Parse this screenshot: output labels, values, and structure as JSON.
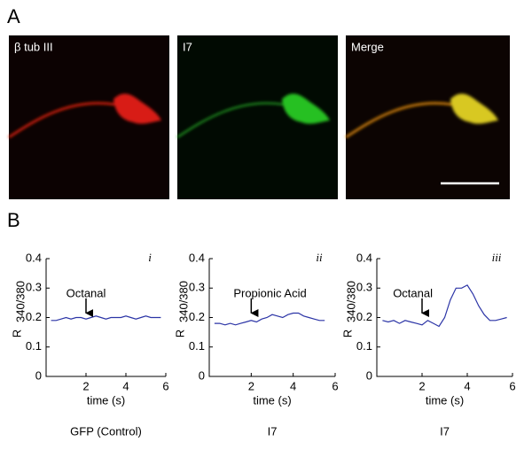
{
  "panel_a": {
    "label": "A",
    "images": [
      {
        "label": "β tub III"
      },
      {
        "label": "I7"
      },
      {
        "label": "Merge"
      }
    ]
  },
  "panel_b": {
    "label": "B"
  },
  "chart_data": [
    {
      "type": "line",
      "numeral": "i",
      "ylabel": "R",
      "ylabel_subscript": "340/380",
      "xlabel": "time (s)",
      "caption": "GFP (Control)",
      "annotation": {
        "text": "Octanal",
        "x": 2
      },
      "xlim": [
        0,
        6
      ],
      "xticks": [
        2,
        4,
        6
      ],
      "ylim": [
        0,
        0.4
      ],
      "yticks": [
        0,
        0.1,
        0.2,
        0.3,
        0.4
      ],
      "x": [
        0.25,
        0.5,
        0.75,
        1,
        1.25,
        1.5,
        1.75,
        2,
        2.25,
        2.5,
        2.75,
        3,
        3.25,
        3.5,
        3.75,
        4,
        4.25,
        4.5,
        4.75,
        5,
        5.25,
        5.5,
        5.75
      ],
      "series": [
        {
          "color": "#2b34a6",
          "values": [
            0.19,
            0.19,
            0.195,
            0.2,
            0.195,
            0.2,
            0.2,
            0.195,
            0.2,
            0.205,
            0.2,
            0.195,
            0.2,
            0.2,
            0.2,
            0.205,
            0.2,
            0.195,
            0.2,
            0.205,
            0.2,
            0.2,
            0.2
          ]
        }
      ]
    },
    {
      "type": "line",
      "numeral": "ii",
      "ylabel": "R",
      "ylabel_subscript": "340/380",
      "xlabel": "time (s)",
      "caption": "I7",
      "annotation": {
        "text": "Propionic Acid",
        "x": 2
      },
      "xlim": [
        0,
        6
      ],
      "xticks": [
        2,
        4,
        6
      ],
      "ylim": [
        0,
        0.4
      ],
      "yticks": [
        0,
        0.1,
        0.2,
        0.3,
        0.4
      ],
      "x": [
        0.25,
        0.5,
        0.75,
        1,
        1.25,
        1.5,
        1.75,
        2,
        2.25,
        2.5,
        2.75,
        3,
        3.25,
        3.5,
        3.75,
        4,
        4.25,
        4.5,
        4.75,
        5,
        5.25,
        5.5
      ],
      "series": [
        {
          "color": "#2b34a6",
          "values": [
            0.18,
            0.18,
            0.175,
            0.18,
            0.175,
            0.18,
            0.185,
            0.19,
            0.185,
            0.195,
            0.2,
            0.21,
            0.205,
            0.2,
            0.21,
            0.215,
            0.215,
            0.205,
            0.2,
            0.195,
            0.19,
            0.19
          ]
        }
      ]
    },
    {
      "type": "line",
      "numeral": "iii",
      "ylabel": "R",
      "ylabel_subscript": "340/380",
      "xlabel": "time (s)",
      "caption": "I7",
      "annotation": {
        "text": "Octanal",
        "x": 2
      },
      "xlim": [
        0,
        6
      ],
      "xticks": [
        2,
        4,
        6
      ],
      "ylim": [
        0,
        0.4
      ],
      "yticks": [
        0,
        0.1,
        0.2,
        0.3,
        0.4
      ],
      "x": [
        0.25,
        0.5,
        0.75,
        1,
        1.25,
        1.5,
        1.75,
        2,
        2.25,
        2.5,
        2.75,
        3,
        3.25,
        3.5,
        3.75,
        4,
        4.25,
        4.5,
        4.75,
        5,
        5.25,
        5.5,
        5.75
      ],
      "series": [
        {
          "color": "#2b34a6",
          "values": [
            0.19,
            0.185,
            0.19,
            0.18,
            0.19,
            0.185,
            0.18,
            0.175,
            0.19,
            0.18,
            0.17,
            0.2,
            0.26,
            0.3,
            0.3,
            0.31,
            0.28,
            0.24,
            0.21,
            0.19,
            0.19,
            0.195,
            0.2
          ]
        }
      ]
    }
  ]
}
